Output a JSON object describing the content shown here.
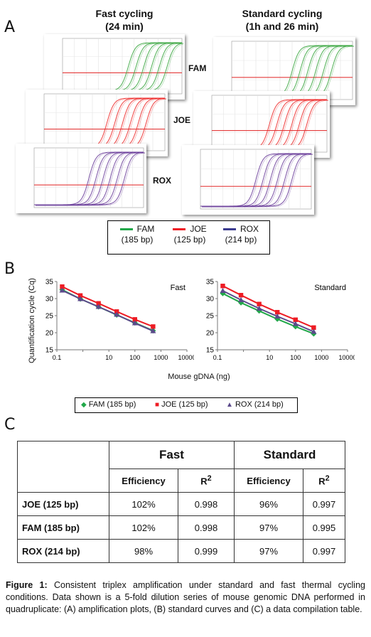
{
  "panel_a": {
    "letter": "A",
    "fast_title_line1": "Fast cycling",
    "fast_title_line2": "(24 min)",
    "standard_title_line1": "Standard cycling",
    "standard_title_line2": "(1h and 26 min)",
    "dye_fam": "FAM",
    "dye_joe": "JOE",
    "dye_rox": "ROX",
    "plot_colors": {
      "FAM": "#3aa63f",
      "JOE": "#ee2b2b",
      "ROX": "#6a3d9a"
    },
    "legend": [
      {
        "name": "FAM",
        "detail": "(185 bp)",
        "color": "#22a84a"
      },
      {
        "name": "JOE",
        "detail": "(125 bp)",
        "color": "#ee1c24"
      },
      {
        "name": "ROX",
        "detail": "(214 bp)",
        "color": "#3b3b8f"
      }
    ]
  },
  "panel_b": {
    "letter": "B",
    "ylabel": "Quantification cycle (Cq)",
    "xlabel": "Mouse gDNA (ng)",
    "legend": [
      {
        "name": "FAM (185 bp)",
        "color": "#22a84a"
      },
      {
        "name": "JOE (125 bp)",
        "color": "#ee1c24"
      },
      {
        "name": "ROX (214 bp)",
        "color": "#5b4a8b"
      }
    ]
  },
  "chart_data": [
    {
      "type": "line",
      "title": "Fast",
      "xlabel": "Mouse gDNA (ng)",
      "ylabel": "Quantification cycle (Cq)",
      "xscale": "log",
      "x_ticks": [
        "0.1",
        "10",
        "100",
        "1000",
        "10000"
      ],
      "y_ticks": [
        "15",
        "20",
        "25",
        "30",
        "35"
      ],
      "ylim": [
        15,
        35
      ],
      "x": [
        0.16,
        0.8,
        4,
        20,
        100,
        500
      ],
      "series": [
        {
          "name": "FAM (185 bp)",
          "color": "#22a84a",
          "values": [
            32.6,
            29.9,
            27.6,
            25.2,
            22.9,
            20.6
          ]
        },
        {
          "name": "JOE (125 bp)",
          "color": "#ee1c24",
          "values": [
            33.5,
            30.9,
            28.6,
            26.2,
            23.9,
            21.8
          ]
        },
        {
          "name": "ROX (214 bp)",
          "color": "#5b4a8b",
          "values": [
            32.4,
            29.9,
            27.6,
            25.3,
            22.8,
            20.5
          ]
        }
      ],
      "grid": false
    },
    {
      "type": "line",
      "title": "Standard",
      "xlabel": "Mouse gDNA (ng)",
      "ylabel": "Quantification cycle (Cq)",
      "xscale": "log",
      "x_ticks": [
        "0.1",
        "10",
        "100",
        "1000",
        "10000"
      ],
      "y_ticks": [
        "15",
        "20",
        "25",
        "30",
        "35"
      ],
      "ylim": [
        15,
        35
      ],
      "x": [
        0.16,
        0.8,
        4,
        20,
        100,
        500
      ],
      "series": [
        {
          "name": "FAM (185 bp)",
          "color": "#22a84a",
          "values": [
            31.5,
            28.8,
            26.4,
            24.0,
            21.8,
            19.7
          ]
        },
        {
          "name": "JOE (125 bp)",
          "color": "#ee1c24",
          "values": [
            33.7,
            31.0,
            28.4,
            26.0,
            23.8,
            21.5
          ]
        },
        {
          "name": "ROX (214 bp)",
          "color": "#5b4a8b",
          "values": [
            32.3,
            29.6,
            27.1,
            24.8,
            22.6,
            20.3
          ]
        }
      ],
      "grid": false
    }
  ],
  "panel_c": {
    "letter": "C",
    "group_fast": "Fast",
    "group_standard": "Standard",
    "col_efficiency": "Efficiency",
    "col_r": "R",
    "col_r_sup": "2",
    "rows": [
      {
        "label": "JOE (125 bp)",
        "fast_eff": "102%",
        "fast_r2": "0.998",
        "std_eff": "96%",
        "std_r2": "0.997"
      },
      {
        "label": "FAM (185 bp)",
        "fast_eff": "102%",
        "fast_r2": "0.998",
        "std_eff": "97%",
        "std_r2": "0.995"
      },
      {
        "label": "ROX (214 bp)",
        "fast_eff": "98%",
        "fast_r2": "0.999",
        "std_eff": "97%",
        "std_r2": "0.997"
      }
    ]
  },
  "caption": {
    "label": "Figure 1:",
    "text": " Consistent triplex amplification under standard and fast thermal cycling conditions. Data shown is a 5-fold dilution series of mouse genomic DNA performed in quadruplicate: (A) amplification plots, (B) standard curves and (C) a data compilation table."
  }
}
